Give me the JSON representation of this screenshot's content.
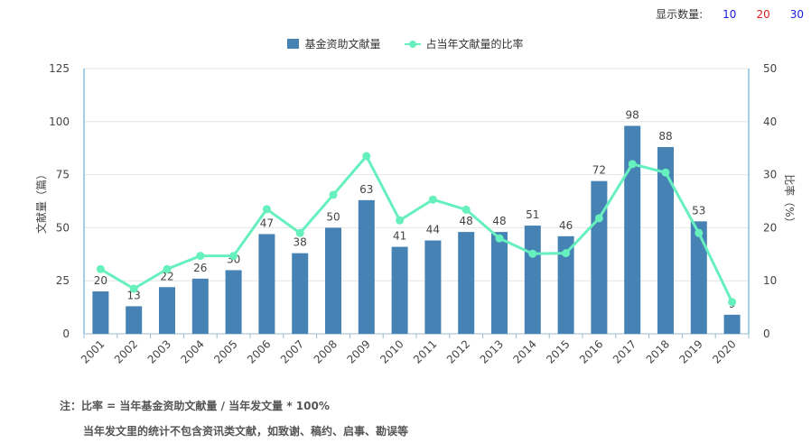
{
  "display": {
    "label": "显示数量:",
    "options": [
      {
        "value": "10",
        "color": "#1a1ae0"
      },
      {
        "value": "20",
        "color": "#e02020"
      },
      {
        "value": "30",
        "color": "#1a1ae0"
      }
    ]
  },
  "colors": {
    "bar": "#4682b4",
    "line": "#66f0be",
    "axis_right": "#4aa3c8"
  },
  "notes": {
    "line1": "注：比率 = 当年基金资助文献量 / 当年发文量 * 100%",
    "line2": "当年发文里的统计不包含资讯类文献，如致谢、稿约、启事、勘误等"
  },
  "chart_data": {
    "type": "bar",
    "title": "",
    "categories": [
      "2001",
      "2002",
      "2003",
      "2004",
      "2005",
      "2006",
      "2007",
      "2008",
      "2009",
      "2010",
      "2011",
      "2012",
      "2013",
      "2014",
      "2015",
      "2016",
      "2017",
      "2018",
      "2019",
      "2020"
    ],
    "series": [
      {
        "name": "基金资助文献量",
        "type": "bar",
        "axis": "left",
        "values": [
          20,
          13,
          22,
          26,
          30,
          47,
          38,
          50,
          63,
          41,
          44,
          48,
          48,
          51,
          46,
          72,
          98,
          88,
          53,
          9
        ]
      },
      {
        "name": "占当年文献量的比率",
        "type": "line",
        "axis": "right",
        "values": [
          12.2,
          8.5,
          12.2,
          14.7,
          14.7,
          23.5,
          19.0,
          26.2,
          33.5,
          21.4,
          25.3,
          23.4,
          18.0,
          15.1,
          15.2,
          21.8,
          32.0,
          30.4,
          19.0,
          6.0
        ]
      }
    ],
    "ylabel": "文献量（篇）",
    "ylabel_right": "比率（%）",
    "ylim": [
      0,
      125
    ],
    "yticks": [
      0,
      25,
      50,
      75,
      100,
      125
    ],
    "ylim_right": [
      0,
      50
    ],
    "yticks_right": [
      0,
      10,
      20,
      30,
      40,
      50
    ],
    "grid": true,
    "legend_position": "top-center"
  }
}
